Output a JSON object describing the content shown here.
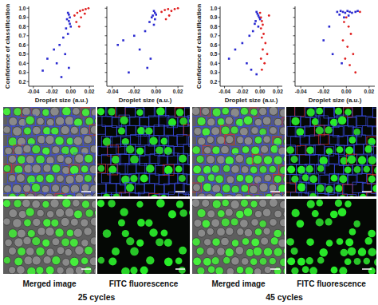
{
  "chart_data": [
    {
      "type": "scatter",
      "xlabel": "Droplet size (a.u.)",
      "ylabel": "Confidence of classification",
      "tick_labels": true,
      "xlim": [
        -0.045,
        0.025
      ],
      "ylim": [
        0.15,
        1.02
      ],
      "xticks": [
        -0.04,
        -0.02,
        {
          "value": 0,
          "label": "0.00"
        },
        0.02
      ],
      "yticks": [
        0.2,
        0.3,
        0.4,
        0.5,
        0.6,
        0.7,
        0.8,
        0.9,
        {
          "value": 1,
          "label": "1.0"
        }
      ],
      "series": [
        {
          "color": "#2a2ad0",
          "marker": "square",
          "x": [
            -0.003,
            -0.002,
            -0.001,
            -0.004,
            -0.002,
            -0.001,
            0.0,
            -0.005,
            -0.003,
            -0.008,
            -0.012,
            -0.018,
            -0.025,
            -0.006,
            -0.015,
            -0.002,
            -0.03,
            -0.01
          ],
          "values": [
            0.95,
            0.93,
            0.9,
            0.88,
            0.86,
            0.83,
            0.8,
            0.78,
            0.72,
            0.68,
            0.6,
            0.55,
            0.45,
            0.5,
            0.4,
            0.35,
            0.32,
            0.25
          ]
        },
        {
          "color": "#e02020",
          "marker": "circle",
          "x": [
            0.004,
            0.007,
            0.01,
            0.013,
            0.016,
            0.019,
            0.006,
            0.011,
            0.009,
            0.015
          ],
          "values": [
            0.92,
            0.95,
            0.97,
            0.98,
            0.99,
            1.0,
            0.85,
            0.9,
            0.8,
            0.94
          ]
        }
      ]
    },
    {
      "type": "scatter",
      "xlabel": "Droplet size (a.u.)",
      "tick_labels": "x",
      "xlim": [
        -0.045,
        0.025
      ],
      "ylim": [
        0.15,
        1.02
      ],
      "xticks": [
        -0.04,
        -0.02,
        {
          "value": 0,
          "label": "0.00"
        },
        0.02
      ],
      "yticks": [
        0.2,
        0.3,
        0.4,
        0.5,
        0.6,
        0.7,
        0.8,
        0.9,
        {
          "value": 1,
          "label": "1.0"
        }
      ],
      "series": [
        {
          "color": "#2a2ad0",
          "marker": "square",
          "x": [
            -0.002,
            -0.001,
            0.0,
            -0.003,
            -0.004,
            -0.001,
            -0.006,
            -0.002,
            -0.01,
            -0.02,
            -0.03,
            -0.035,
            -0.015,
            -0.005,
            -0.008,
            -0.025
          ],
          "values": [
            0.97,
            0.95,
            0.93,
            0.92,
            0.9,
            0.88,
            0.85,
            0.82,
            0.75,
            0.7,
            0.65,
            0.6,
            0.55,
            0.45,
            0.35,
            0.3
          ]
        },
        {
          "color": "#e02020",
          "marker": "circle",
          "x": [
            0.005,
            0.008,
            0.011,
            0.014,
            0.017,
            0.02,
            0.012,
            0.009
          ],
          "values": [
            0.96,
            0.98,
            0.99,
            0.97,
            0.99,
            1.0,
            0.92,
            0.88
          ]
        }
      ]
    },
    {
      "type": "scatter",
      "xlabel": "Droplet size (a.u.)",
      "ylabel": "Confidence of classification",
      "tick_labels": true,
      "xlim": [
        -0.045,
        0.025
      ],
      "ylim": [
        0.15,
        1.02
      ],
      "xticks": [
        -0.04,
        -0.02,
        {
          "value": 0,
          "label": "0.00"
        },
        0.02
      ],
      "yticks": [
        0.2,
        0.3,
        0.4,
        0.5,
        0.6,
        0.7,
        0.8,
        0.9,
        {
          "value": 1,
          "label": "1.0"
        }
      ],
      "series": [
        {
          "color": "#2a2ad0",
          "marker": "square",
          "x": [
            -0.004,
            -0.003,
            -0.002,
            -0.001,
            0.0,
            -0.005,
            -0.006,
            -0.002,
            -0.008,
            -0.012,
            -0.02,
            -0.028,
            -0.035,
            -0.015,
            -0.01,
            -0.004
          ],
          "values": [
            0.96,
            0.94,
            0.92,
            0.9,
            0.88,
            0.86,
            0.83,
            0.8,
            0.75,
            0.7,
            0.62,
            0.55,
            0.45,
            0.4,
            0.33,
            0.28
          ]
        },
        {
          "color": "#e02020",
          "marker": "circle",
          "x": [
            0.0,
            0.001,
            0.002,
            0.003,
            0.001,
            0.004,
            0.002,
            0.006,
            0.003,
            0.008,
            0.001,
            0.005,
            0.002,
            0.01
          ],
          "values": [
            0.95,
            0.9,
            0.86,
            0.82,
            0.78,
            0.72,
            0.68,
            0.62,
            0.55,
            0.5,
            0.45,
            0.4,
            0.33,
            0.92
          ]
        }
      ]
    },
    {
      "type": "scatter",
      "xlabel": "Droplet size (a.u.)",
      "tick_labels": "x",
      "xlim": [
        -0.045,
        0.025
      ],
      "ylim": [
        0.15,
        1.02
      ],
      "xticks": [
        -0.04,
        -0.02,
        {
          "value": 0,
          "label": "0.00"
        },
        0.02
      ],
      "yticks": [
        0.2,
        0.3,
        0.4,
        0.5,
        0.6,
        0.7,
        0.8,
        0.9,
        {
          "value": 1,
          "label": "1.0"
        }
      ],
      "series": [
        {
          "color": "#2a2ad0",
          "marker": "square",
          "x": [
            -0.008,
            -0.005,
            -0.003,
            -0.001,
            0.001,
            0.003,
            0.005,
            0.008,
            0.01,
            -0.006,
            -0.002,
            0.002,
            -0.015,
            -0.02,
            -0.012,
            -0.004
          ],
          "values": [
            0.96,
            0.97,
            0.96,
            0.95,
            0.97,
            0.96,
            0.95,
            0.96,
            0.97,
            0.93,
            0.9,
            0.92,
            0.8,
            0.65,
            0.5,
            0.4
          ]
        },
        {
          "color": "#e02020",
          "marker": "circle",
          "x": [
            0.0,
            -0.002,
            0.002,
            0.004,
            -0.003,
            0.001,
            0.006,
            -0.001,
            0.003,
            0.012,
            0.008
          ],
          "values": [
            0.9,
            0.85,
            0.8,
            0.72,
            0.65,
            0.58,
            0.5,
            0.45,
            0.38,
            0.96,
            0.3
          ]
        }
      ]
    }
  ],
  "image_labels": [
    "Merged image",
    "FITC fluorescence",
    "Merged image",
    "FITC fluorescence"
  ],
  "groups": [
    "25 cycles",
    "45 cycles"
  ]
}
